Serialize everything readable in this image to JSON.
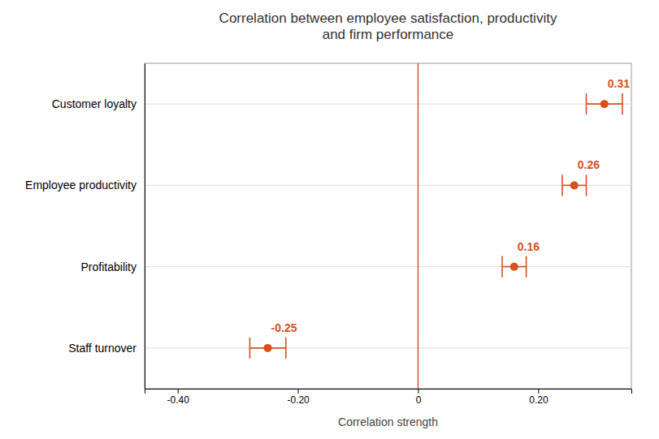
{
  "chart_data": {
    "type": "dot",
    "orientation": "horizontal",
    "title": "Correlation between employee satisfaction, productivity\nand firm performance",
    "x_label": "Correlation strength",
    "categories": [
      "Customer loyalty",
      "Employee productivity",
      "Profitability",
      "Staff turnover"
    ],
    "values": [
      0.31,
      0.26,
      0.16,
      -0.25
    ],
    "errors": [
      0.03,
      0.02,
      0.02,
      0.03
    ],
    "color": "#d94f1e",
    "data_labels": true,
    "grid": true,
    "xlim": [
      -0.455,
      0.355
    ],
    "xticks": [
      {
        "value": -0.4,
        "label": "-0.40"
      },
      {
        "value": -0.2,
        "label": "-0.20"
      },
      0,
      {
        "value": 0.2,
        "label": "0.20"
      }
    ]
  }
}
